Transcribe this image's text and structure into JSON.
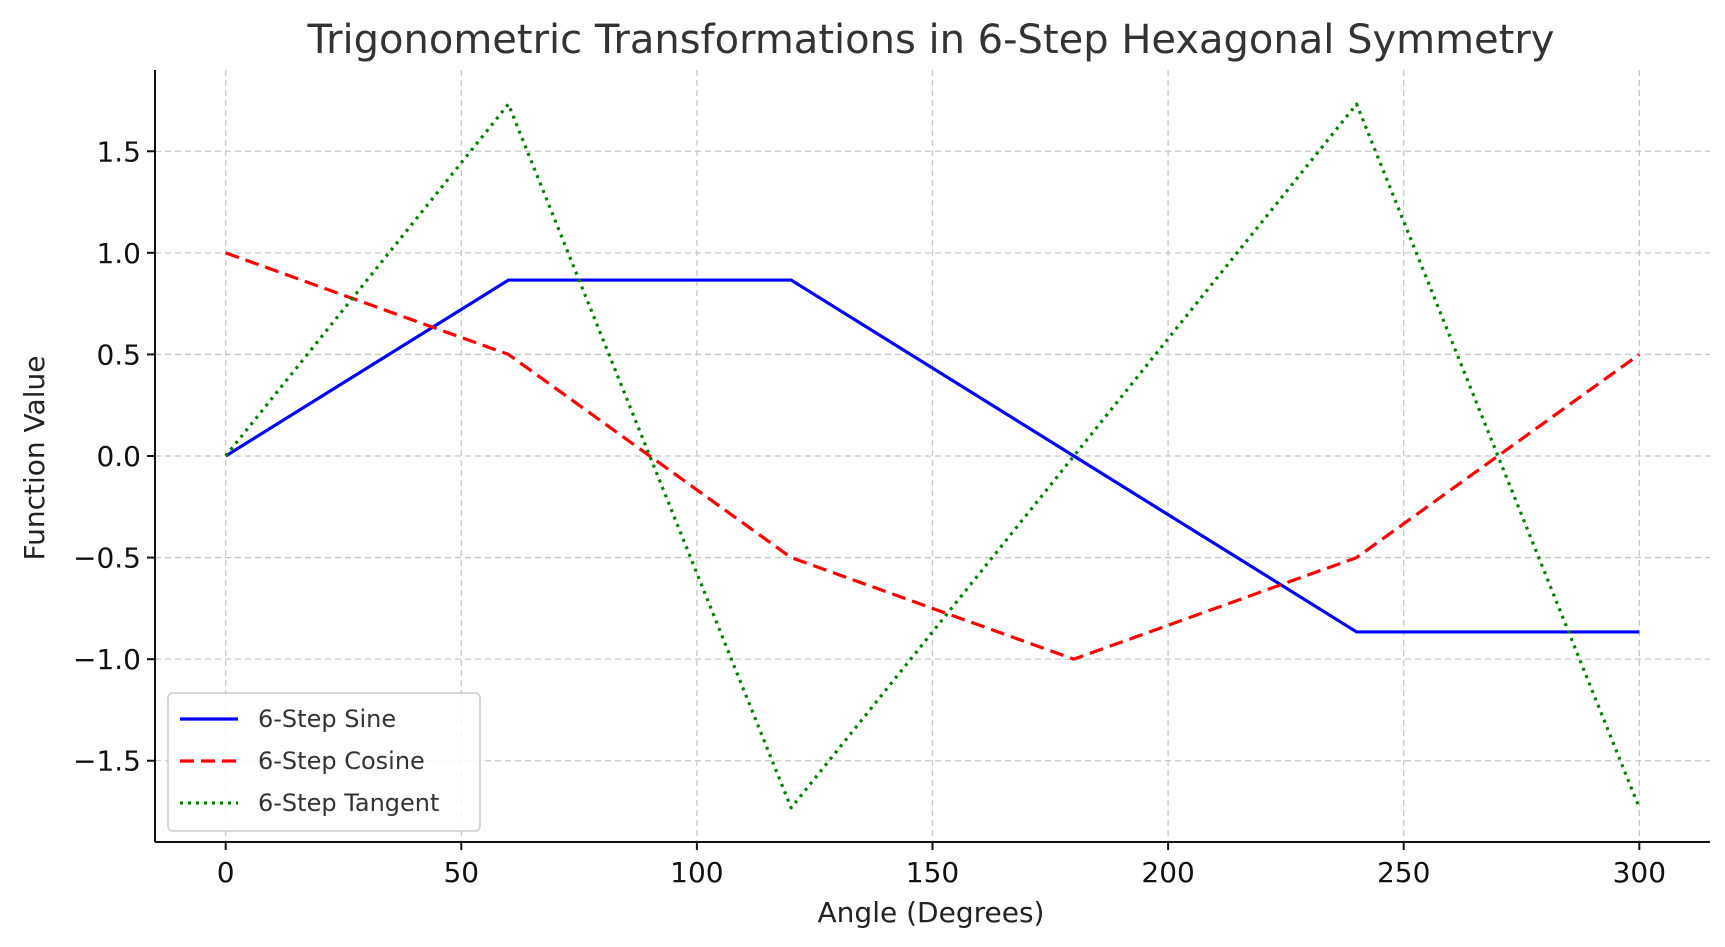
{
  "chart_data": {
    "type": "line",
    "title": "Trigonometric Transformations in 6-Step Hexagonal Symmetry",
    "xlabel": "Angle (Degrees)",
    "ylabel": "Function Value",
    "xlim": [
      -15,
      315
    ],
    "ylim": [
      -1.9,
      1.9
    ],
    "xticks": [
      0,
      50,
      100,
      150,
      200,
      250,
      300
    ],
    "xtick_labels": [
      "0",
      "50",
      "100",
      "150",
      "200",
      "250",
      "300"
    ],
    "yticks": [
      1.5,
      1.0,
      0.5,
      0.0,
      -0.5,
      -1.0,
      -1.5
    ],
    "ytick_labels": [
      "1.5",
      "1.0",
      "0.5",
      "0.0",
      "−0.5",
      "−1.0",
      "−1.5"
    ],
    "grid": true,
    "legend_position": "lower-left",
    "x": [
      0,
      60,
      120,
      180,
      240,
      300
    ],
    "series": [
      {
        "name": "6-Step Sine",
        "values": [
          0.0,
          0.866,
          0.866,
          0.0,
          -0.866,
          -0.866
        ],
        "color": "#0000ff",
        "style": "solid"
      },
      {
        "name": "6-Step Cosine",
        "values": [
          1.0,
          0.5,
          -0.5,
          -1.0,
          -0.5,
          0.5
        ],
        "color": "#ff0000",
        "style": "dashed"
      },
      {
        "name": "6-Step Tangent",
        "values": [
          0.0,
          1.732,
          -1.732,
          0.0,
          1.732,
          -1.732
        ],
        "color": "#008000",
        "style": "dotted"
      }
    ]
  }
}
